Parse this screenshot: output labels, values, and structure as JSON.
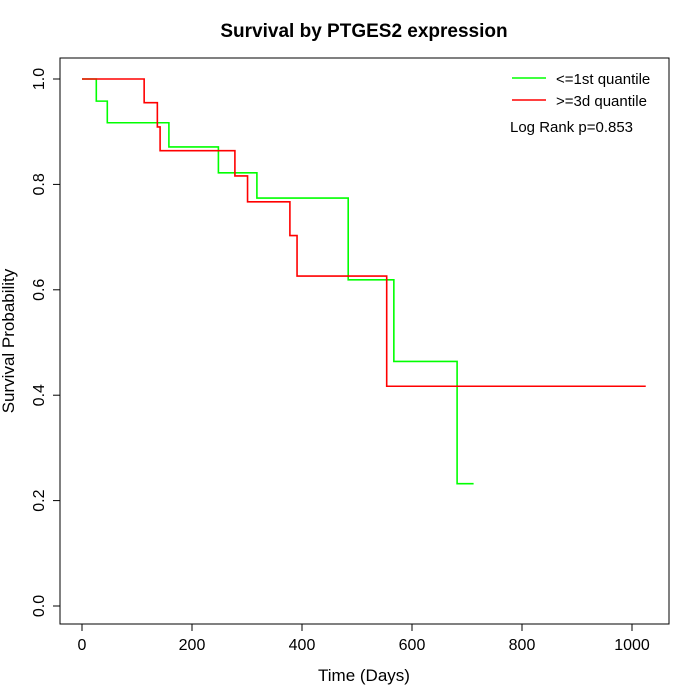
{
  "chart_data": {
    "type": "line",
    "title": "Survival by PTGES2 expression",
    "xlabel": "Time (Days)",
    "ylabel": "Survival Probability",
    "xlim": [
      0,
      1025
    ],
    "ylim": [
      0,
      1
    ],
    "x_ticks": [
      0,
      200,
      400,
      600,
      800,
      1000
    ],
    "y_ticks": [
      0.0,
      0.2,
      0.4,
      0.6,
      0.8,
      1.0
    ],
    "x_tick_labels": [
      "0",
      "200",
      "400",
      "600",
      "800",
      "1000"
    ],
    "y_tick_labels": [
      "0.0",
      "0.2",
      "0.4",
      "0.6",
      "0.8",
      "1.0"
    ],
    "grid": false,
    "legend_position": "top-right",
    "annotation": "Log Rank p=0.853",
    "series": [
      {
        "name": "<=1st quantile",
        "color": "#00ff00",
        "step": true,
        "x": [
          0,
          26,
          46,
          158,
          248,
          318,
          484,
          567,
          682,
          712
        ],
        "y": [
          1.0,
          0.958,
          0.917,
          0.871,
          0.822,
          0.774,
          0.619,
          0.464,
          0.232,
          0.232
        ]
      },
      {
        "name": ">=3d quantile",
        "color": "#ff0000",
        "step": true,
        "x": [
          0,
          113,
          137,
          142,
          278,
          301,
          378,
          391,
          554,
          1025
        ],
        "y": [
          1.0,
          0.955,
          0.909,
          0.864,
          0.816,
          0.767,
          0.703,
          0.626,
          0.417,
          0.417
        ]
      }
    ]
  }
}
